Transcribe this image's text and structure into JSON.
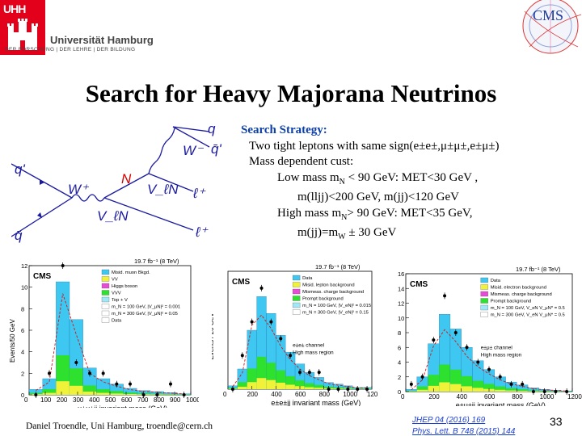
{
  "logo": {
    "short": "UHH",
    "name": "Universität Hamburg",
    "motto": "DER FORSCHUNG | DER LEHRE | DER BILDUNG",
    "brand_color": "#e2001a"
  },
  "cms_logo": {
    "text": "CMS"
  },
  "title": "Search for Heavy Majorana Neutrinos",
  "diagram": {
    "labels": [
      "q",
      "q̄'",
      "W⁻",
      "q'",
      "W⁺",
      "N",
      "V_ℓN",
      "ℓ⁺",
      "q̄",
      "V_ℓN",
      "ℓ⁺"
    ]
  },
  "strategy": {
    "heading": "Search Strategy:",
    "line1": "Two tight leptons with same sign(e±e±,μ±μ±,e±μ±)",
    "line2": "Mass dependent cust:",
    "line3a": "Low mass m",
    "line3sub": "N",
    "line3b": " < 90 GeV: MET<30 GeV ,",
    "line4": "m(lljj)<200 GeV, m(jj)<120 GeV",
    "line5a": "High mass m",
    "line5sub": "N",
    "line5b": "> 90 GeV: MET<35 GeV,",
    "line6a": "m(jj)=m",
    "line6sub": "W",
    "line6b": " ± 30 GeV"
  },
  "plots": [
    {
      "lumi": "19.7 fb⁻¹ (8 TeV)",
      "label": "CMS",
      "ylabel": "Events/50 GeV",
      "xlabel": "μ±μ±jj invariant mass (GeV)",
      "legend": [
        "Misid. muon Bkgd.",
        "VV",
        "Higgs boson",
        "VVV",
        "Top + V",
        "m_N = 100 GeV, |V_μN|² = 0.001",
        "m_N = 300 GeV, |V_μN|² = 0.05",
        "Data"
      ],
      "yticks": [
        "0",
        "2",
        "4",
        "6",
        "8",
        "10",
        "12"
      ],
      "xticks": [
        "0",
        "100",
        "200",
        "300",
        "400",
        "500",
        "600",
        "700",
        "800",
        "900",
        "1000"
      ],
      "values": [
        0.5,
        1.5,
        10.5,
        7,
        2.5,
        1.5,
        1.0,
        0.6,
        0.4,
        0.3,
        0.2,
        0.1
      ],
      "data_points": [
        0,
        2,
        12,
        3,
        2,
        2,
        1,
        1,
        0,
        0,
        1,
        0
      ]
    },
    {
      "lumi": "19.7 fb⁻¹ (8 TeV)",
      "label": "CMS",
      "ylabel": "Events / 20 GeV",
      "xlabel": "e±e±jj invariant mass (GeV)",
      "legend": [
        "Data",
        "Misid. lepton background",
        "Mismeas. charge background",
        "Prompt background",
        "m_N = 100 GeV, |V_eN|² = 0.015",
        "m_N = 300 GeV, |V_eN|² = 0.15"
      ],
      "annotation1": "e±e± channel",
      "annotation2": "High mass region",
      "xticks": [
        "0",
        "200",
        "400",
        "600",
        "800",
        "1000",
        "1200"
      ],
      "values": [
        0.2,
        1.2,
        3.5,
        5.5,
        4.5,
        3.2,
        2.2,
        1.5,
        1.0,
        0.7,
        0.4,
        0.3,
        0.2,
        0.1,
        0.1
      ],
      "data_points": [
        0,
        2,
        4,
        6,
        4,
        3,
        2,
        1,
        1,
        1,
        0,
        0,
        0,
        0,
        0
      ]
    },
    {
      "lumi": "19.7 fb⁻¹ (8 TeV)",
      "label": "CMS",
      "ylabel": "Events / 20 GeV",
      "xlabel": "e±μ±jj invariant mass (GeV)",
      "legend": [
        "Data",
        "Misid. electron background",
        "Mismeas. charge background",
        "Prompt background",
        "m_N = 100 GeV, V_eN V_μN* = 0.5",
        "m_N = 300 GeV, V_eN V_μN* = 0.5"
      ],
      "annotation1": "e±μ± channel",
      "annotation2": "High mass region",
      "yticks": [
        "0",
        "2",
        "4",
        "6",
        "8",
        "10",
        "12",
        "14",
        "16"
      ],
      "xticks": [
        "0",
        "200",
        "400",
        "600",
        "800",
        "1000",
        "1200"
      ],
      "values": [
        0.3,
        2.0,
        6.5,
        10.5,
        8.5,
        6.0,
        4.2,
        3.0,
        2.0,
        1.3,
        0.9,
        0.5,
        0.3,
        0.2,
        0.1
      ],
      "data_points": [
        1,
        2,
        7,
        13,
        8,
        6,
        4,
        3,
        2,
        1,
        1,
        0,
        0,
        0,
        0
      ]
    }
  ],
  "footer": {
    "author": "Daniel Troendle, Uni Hamburg, troendle@cern.ch",
    "ref1": "JHEP 04 (2016) 169",
    "ref2": "Phys. Lett. B 748 (2015) 144",
    "page": "33"
  }
}
